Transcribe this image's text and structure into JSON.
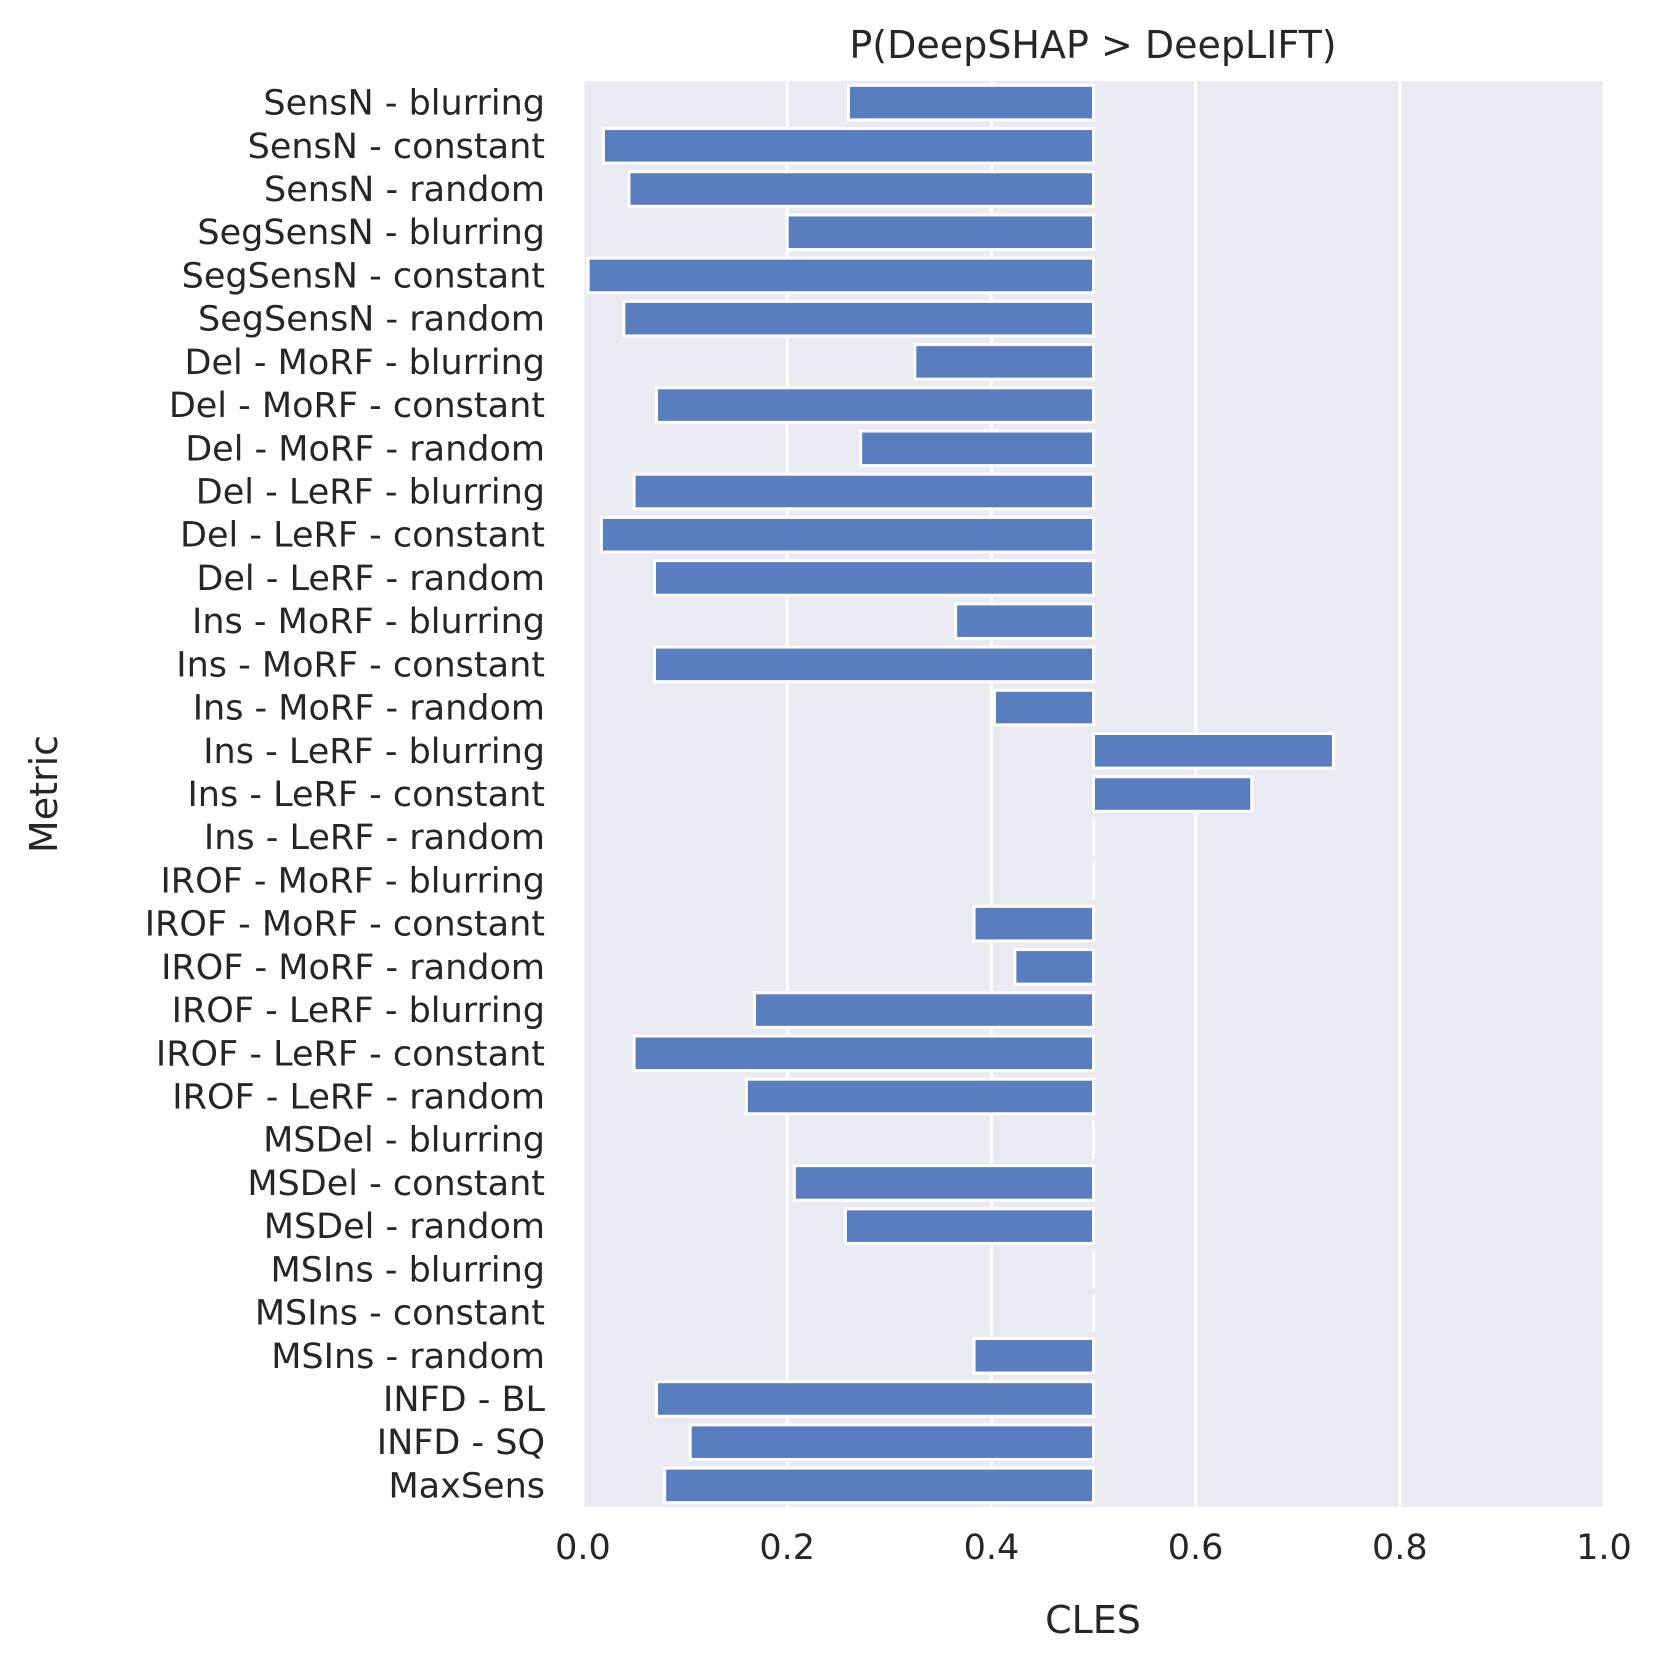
{
  "chart_data": {
    "type": "bar",
    "orientation": "horizontal",
    "title": "P(DeepSHAP > DeepLIFT)",
    "xlabel": "CLES",
    "ylabel": "Metric",
    "xlim": [
      0.0,
      1.0
    ],
    "x_ticks": [
      "0.0",
      "0.2",
      "0.4",
      "0.6",
      "0.8",
      "1.0"
    ],
    "x_tick_values": [
      0.0,
      0.2,
      0.4,
      0.6,
      0.8,
      1.0
    ],
    "baseline": 0.5,
    "grid": true,
    "colors": {
      "bar": "#5a7dc0",
      "background": "#eaeaf2",
      "grid": "#ffffff",
      "text": "#262626"
    },
    "categories": [
      "SensN - blurring",
      "SensN - constant",
      "SensN - random",
      "SegSensN - blurring",
      "SegSensN - constant",
      "SegSensN - random",
      "Del - MoRF - blurring",
      "Del - MoRF - constant",
      "Del - MoRF - random",
      "Del - LeRF - blurring",
      "Del - LeRF - constant",
      "Del - LeRF - random",
      "Ins - MoRF - blurring",
      "Ins - MoRF - constant",
      "Ins - MoRF - random",
      "Ins - LeRF - blurring",
      "Ins - LeRF - constant",
      "Ins - LeRF - random",
      "IROF - MoRF - blurring",
      "IROF - MoRF - constant",
      "IROF - MoRF - random",
      "IROF - LeRF - blurring",
      "IROF - LeRF - constant",
      "IROF - LeRF - random",
      "MSDel - blurring",
      "MSDel - constant",
      "MSDel - random",
      "MSIns - blurring",
      "MSIns - constant",
      "MSIns - random",
      "INFD - BL",
      "INFD - SQ",
      "MaxSens"
    ],
    "values": [
      0.26,
      0.02,
      0.045,
      0.2,
      0.005,
      0.04,
      0.325,
      0.072,
      0.272,
      0.05,
      0.018,
      0.07,
      0.365,
      0.07,
      0.403,
      0.735,
      0.655,
      0.5,
      0.5,
      0.383,
      0.423,
      0.168,
      0.05,
      0.16,
      0.5,
      0.207,
      0.257,
      0.5,
      0.5,
      0.383,
      0.072,
      0.105,
      0.08
    ]
  }
}
